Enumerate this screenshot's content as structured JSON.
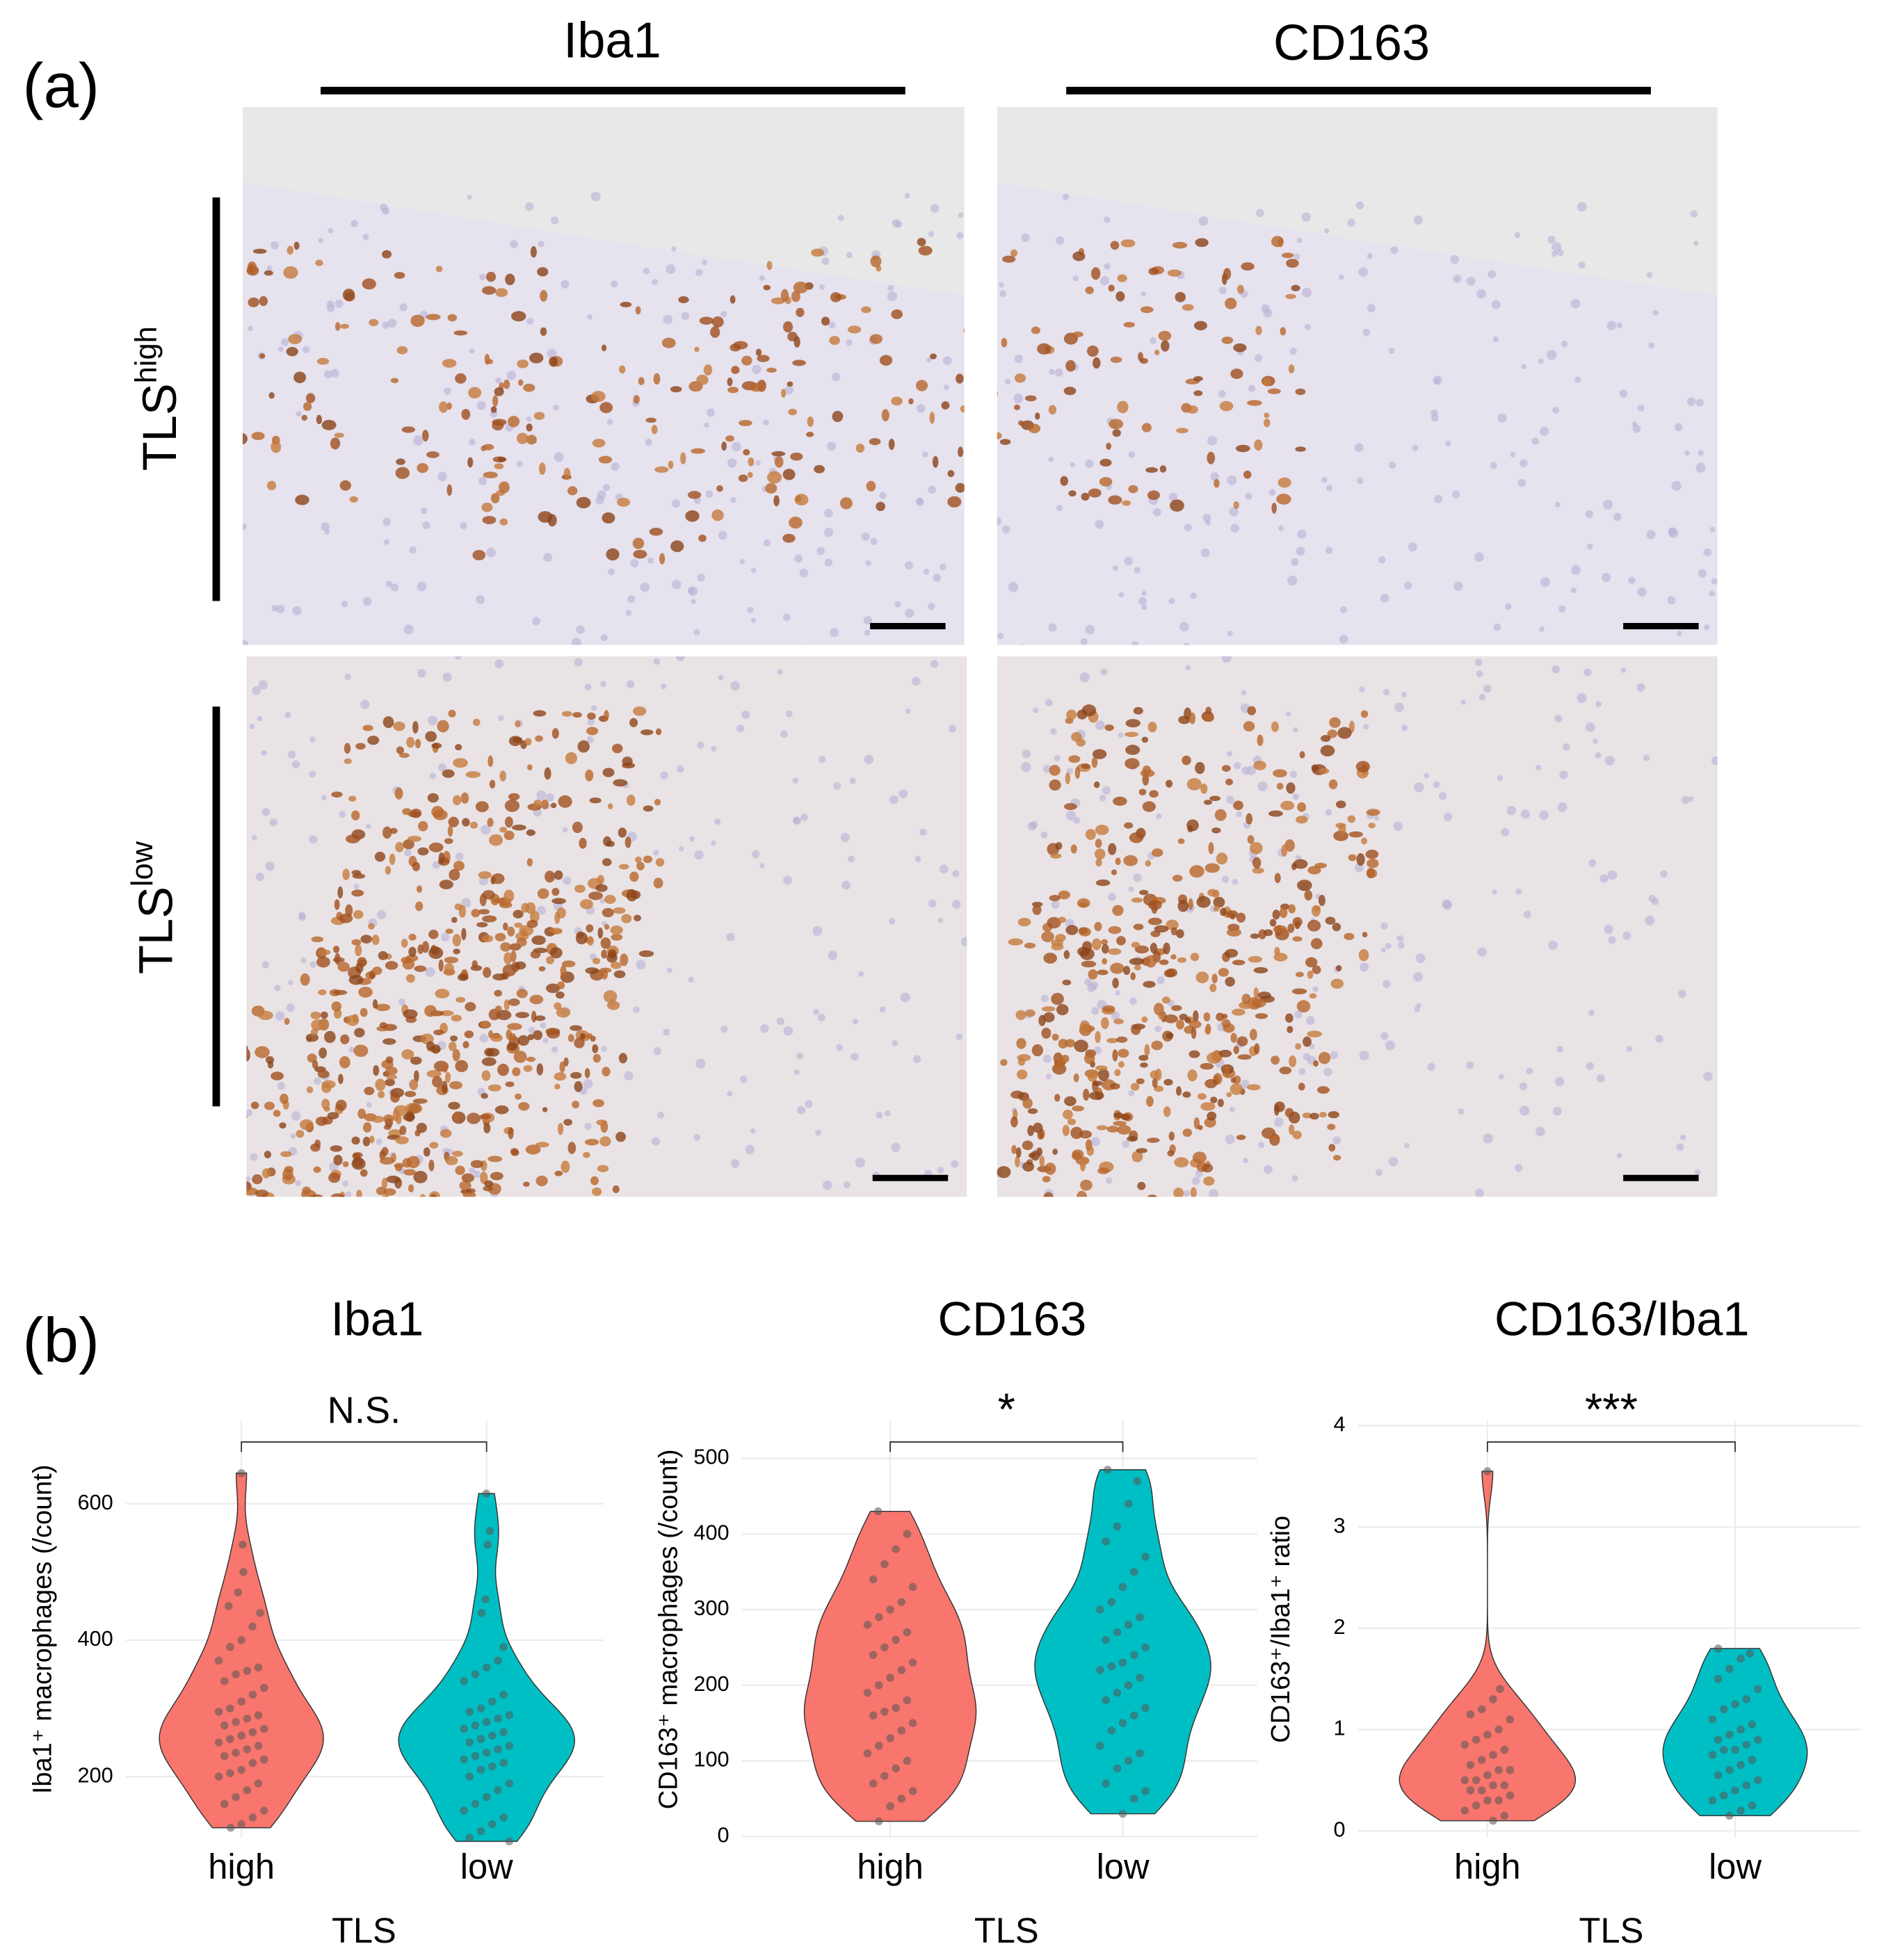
{
  "panel_a": {
    "label": "(a)",
    "columns": [
      "Iba1",
      "CD163"
    ],
    "rows": [
      {
        "label": "TLS",
        "sup": "high"
      },
      {
        "label": "TLS",
        "sup": "low"
      }
    ]
  },
  "panel_b": {
    "label": "(b)"
  },
  "chart_data": [
    {
      "type": "violin",
      "title": "Iba1",
      "xlabel": "TLS",
      "ylabel": "Iba1⁺ macrophages (/count)",
      "categories": [
        "high",
        "low"
      ],
      "colors": [
        "#F8766D",
        "#00BFC4"
      ],
      "values": [
        [
          645,
          540,
          500,
          470,
          450,
          440,
          420,
          400,
          390,
          370,
          360,
          355,
          350,
          340,
          330,
          320,
          310,
          300,
          295,
          290,
          285,
          280,
          275,
          270,
          265,
          260,
          255,
          250,
          245,
          240,
          235,
          230,
          225,
          220,
          210,
          205,
          200,
          190,
          180,
          170,
          160,
          150,
          140,
          130,
          125
        ],
        [
          615,
          560,
          540,
          460,
          440,
          390,
          370,
          360,
          350,
          340,
          320,
          310,
          300,
          295,
          290,
          285,
          280,
          275,
          270,
          265,
          260,
          255,
          250,
          245,
          240,
          235,
          230,
          225,
          220,
          215,
          210,
          200,
          190,
          180,
          170,
          160,
          150,
          140,
          130,
          120,
          110,
          105
        ]
      ],
      "ylim": [
        110,
        722
      ],
      "yticks": [
        200,
        400,
        600
      ],
      "grid": true,
      "annotation": "N.S."
    },
    {
      "type": "violin",
      "title": "CD163",
      "xlabel": "TLS",
      "ylabel": "CD163⁺ macrophages (/count)",
      "categories": [
        "high",
        "low"
      ],
      "colors": [
        "#F8766D",
        "#00BFC4"
      ],
      "values": [
        [
          430,
          400,
          380,
          360,
          340,
          330,
          310,
          300,
          290,
          280,
          270,
          260,
          250,
          240,
          230,
          220,
          210,
          200,
          190,
          180,
          170,
          165,
          160,
          150,
          140,
          130,
          120,
          110,
          100,
          90,
          80,
          70,
          60,
          50,
          40,
          20
        ],
        [
          485,
          470,
          440,
          410,
          390,
          370,
          350,
          330,
          310,
          300,
          290,
          280,
          270,
          260,
          250,
          240,
          230,
          225,
          220,
          210,
          200,
          190,
          180,
          170,
          160,
          150,
          140,
          120,
          110,
          100,
          90,
          70,
          60,
          50,
          30
        ]
      ],
      "ylim": [
        -2,
        550
      ],
      "yticks": [
        0,
        100,
        200,
        300,
        400,
        500
      ],
      "grid": true,
      "annotation": "*"
    },
    {
      "type": "violin",
      "title": "CD163/Iba1",
      "xlabel": "TLS",
      "ylabel": "CD163⁺/Iba1⁺ ratio",
      "categories": [
        "high",
        "low"
      ],
      "colors": [
        "#F8766D",
        "#00BFC4"
      ],
      "values": [
        [
          3.55,
          1.4,
          1.3,
          1.2,
          1.15,
          1.1,
          1.0,
          0.95,
          0.9,
          0.85,
          0.8,
          0.75,
          0.7,
          0.65,
          0.6,
          0.6,
          0.55,
          0.5,
          0.5,
          0.45,
          0.45,
          0.4,
          0.4,
          0.35,
          0.3,
          0.3,
          0.25,
          0.2,
          0.15,
          0.1
        ],
        [
          1.8,
          1.75,
          1.7,
          1.6,
          1.5,
          1.4,
          1.3,
          1.25,
          1.2,
          1.1,
          1.05,
          1.0,
          0.95,
          0.9,
          0.9,
          0.85,
          0.8,
          0.8,
          0.75,
          0.7,
          0.65,
          0.6,
          0.55,
          0.5,
          0.45,
          0.4,
          0.35,
          0.3,
          0.25,
          0.2,
          0.15
        ]
      ],
      "ylim": [
        -0.07,
        4.05
      ],
      "yticks": [
        0,
        1,
        2,
        3,
        4
      ],
      "grid": true,
      "annotation": "***"
    }
  ]
}
